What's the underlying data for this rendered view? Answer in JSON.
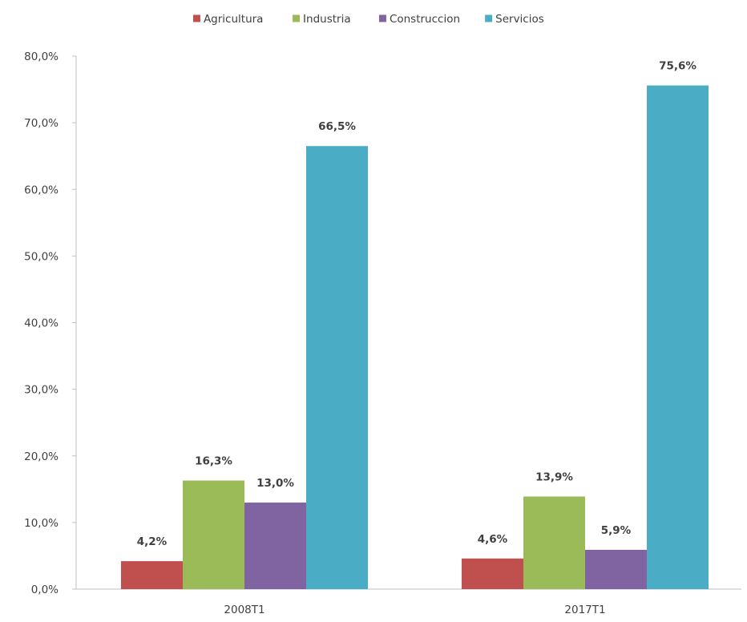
{
  "chart_data": {
    "type": "bar",
    "title": "",
    "xlabel": "",
    "ylabel": "",
    "categories": [
      "2008T1",
      "2017T1"
    ],
    "series": [
      {
        "name": "Agricultura",
        "color": "#C0504D",
        "values": [
          4.2,
          4.6
        ],
        "labels": [
          "4,2%",
          "4,6%"
        ]
      },
      {
        "name": "Industria",
        "color": "#9BBB59",
        "values": [
          16.3,
          13.9
        ],
        "labels": [
          "16,3%",
          "13,9%"
        ]
      },
      {
        "name": "Construccion",
        "color": "#8064A2",
        "values": [
          13.0,
          5.9
        ],
        "labels": [
          "13,0%",
          "5,9%"
        ]
      },
      {
        "name": "Servicios",
        "color": "#4BACC6",
        "values": [
          66.5,
          75.6
        ],
        "labels": [
          "66,5%",
          "75,6%"
        ]
      }
    ],
    "ylim": [
      0,
      80
    ],
    "yticks": [
      0,
      10,
      20,
      30,
      40,
      50,
      60,
      70,
      80
    ],
    "ytick_labels": [
      "0,0%",
      "10,0%",
      "20,0%",
      "30,0%",
      "40,0%",
      "50,0%",
      "60,0%",
      "70,0%",
      "80,0%"
    ],
    "legend_position": "top",
    "grid": false
  }
}
